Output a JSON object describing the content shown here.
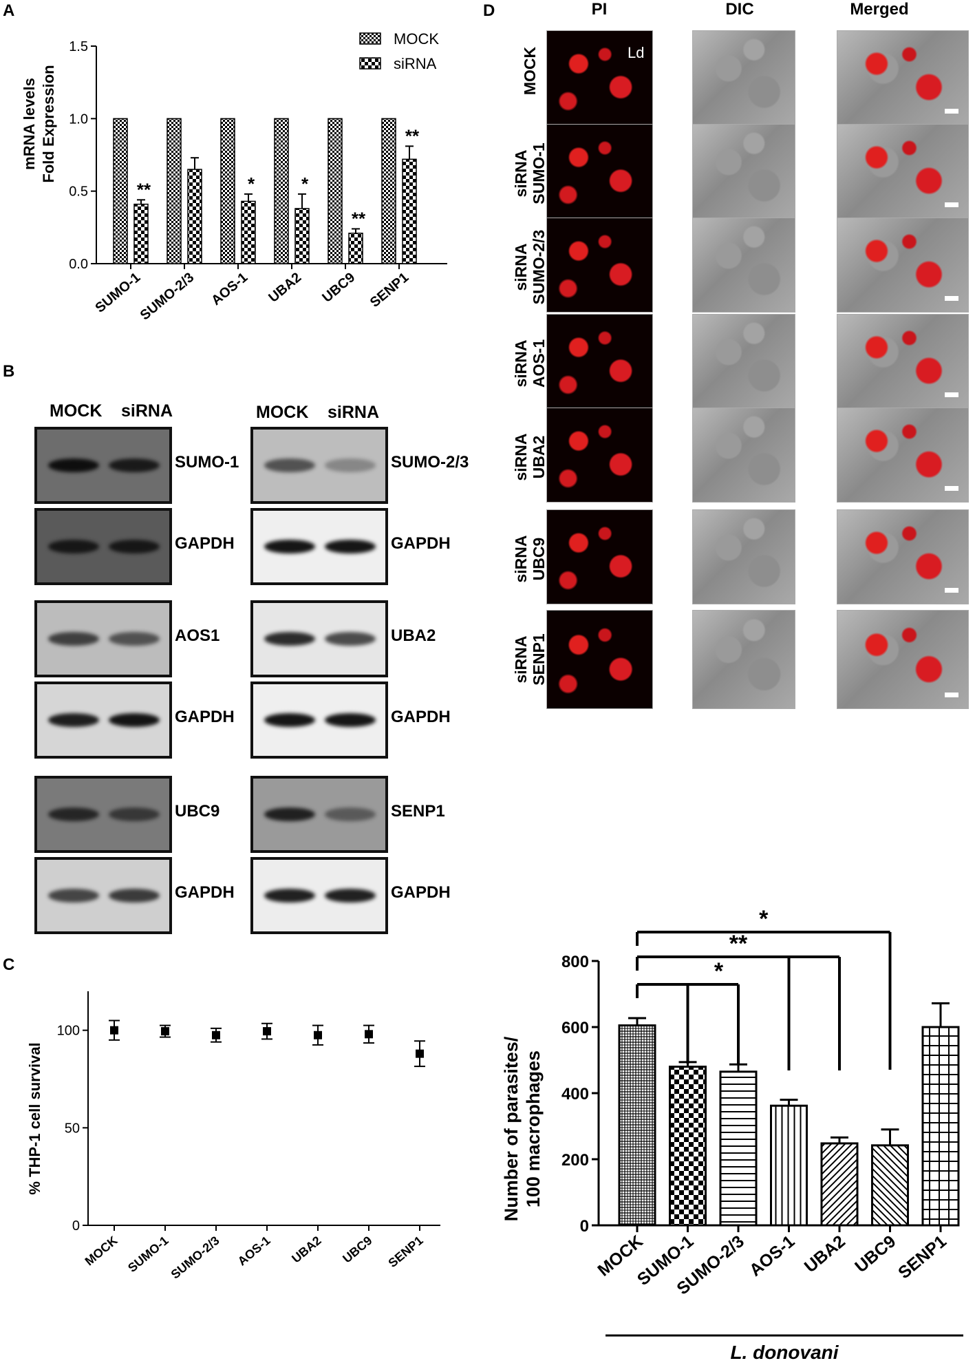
{
  "panels": {
    "a": "A",
    "b": "B",
    "c": "C",
    "d": "D"
  },
  "panelA": {
    "chart_data": {
      "type": "bar",
      "categories": [
        "SUMO-1",
        "SUMO-2/3",
        "AOS-1",
        "UBA2",
        "UBC9",
        "SENP1"
      ],
      "series": [
        {
          "name": "MOCK",
          "values": [
            1.0,
            1.0,
            1.0,
            1.0,
            1.0,
            1.0
          ]
        },
        {
          "name": "siRNA",
          "values": [
            0.41,
            0.65,
            0.43,
            0.38,
            0.21,
            0.72
          ],
          "errors": [
            0.03,
            0.08,
            0.05,
            0.1,
            0.03,
            0.09
          ]
        }
      ],
      "significance": [
        "**",
        "",
        "*",
        "*",
        "**",
        "**"
      ],
      "ylabel_line1": "mRNA levels",
      "ylabel_line2": "Fold Expression",
      "ylim": [
        0,
        1.5
      ],
      "yticks": [
        "0.0",
        "0.5",
        "1.0",
        "1.5"
      ],
      "legend_position": "top-right"
    }
  },
  "panelB": {
    "col_mock": "MOCK",
    "col_sirna": "siRNA",
    "left": [
      "SUMO-1",
      "GAPDH",
      "AOS1",
      "GAPDH",
      "UBC9",
      "GAPDH"
    ],
    "right": [
      "SUMO-2/3",
      "GAPDH",
      "UBA2",
      "GAPDH",
      "SENP1",
      "GAPDH"
    ]
  },
  "panelC": {
    "chart_data": {
      "type": "scatter",
      "categories": [
        "MOCK",
        "SUMO-1",
        "SUMO-2/3",
        "AOS-1",
        "UBA2",
        "UBC9",
        "SENP1"
      ],
      "values": [
        100,
        99.5,
        97.5,
        99.5,
        97.5,
        98,
        88
      ],
      "errors": [
        5,
        3,
        3.5,
        4,
        5,
        4.5,
        6.5
      ],
      "ylabel": "% THP-1 cell survival",
      "ylim": [
        0,
        120
      ],
      "yticks": [
        "0",
        "50",
        "100"
      ]
    }
  },
  "panelD": {
    "columns": [
      "PI",
      "DIC",
      "Merged"
    ],
    "rows": [
      {
        "line1": "MOCK",
        "line2": ""
      },
      {
        "line1": "siRNA",
        "line2": "SUMO-1"
      },
      {
        "line1": "siRNA",
        "line2": "SUMO-2/3"
      },
      {
        "line1": "siRNA",
        "line2": "AOS-1"
      },
      {
        "line1": "siRNA",
        "line2": "UBA2"
      },
      {
        "line1": "siRNA",
        "line2": "UBC9"
      },
      {
        "line1": "siRNA",
        "line2": "SENP1"
      }
    ],
    "arrow_label": "Ld"
  },
  "panelE": {
    "chart_data": {
      "type": "bar",
      "categories": [
        "MOCK",
        "SUMO-1",
        "SUMO-2/3",
        "AOS-1",
        "UBA2",
        "UBC9",
        "SENP1"
      ],
      "values": [
        605,
        480,
        465,
        362,
        248,
        242,
        600
      ],
      "errors": [
        22,
        14,
        22,
        18,
        18,
        48,
        72
      ],
      "ylabel_line1": "Number of parasites/",
      "ylabel_line2": "100 macrophages",
      "ylim": [
        0,
        800
      ],
      "yticks": [
        "0",
        "200",
        "400",
        "600",
        "800"
      ],
      "xgroup_label": "L. donovani",
      "brackets": [
        {
          "label": "*",
          "targets": [
            "SUMO-1",
            "SUMO-2/3"
          ]
        },
        {
          "label": "**",
          "targets": [
            "AOS-1",
            "UBA2"
          ]
        },
        {
          "label": "*",
          "targets": [
            "UBC9"
          ]
        }
      ]
    }
  }
}
